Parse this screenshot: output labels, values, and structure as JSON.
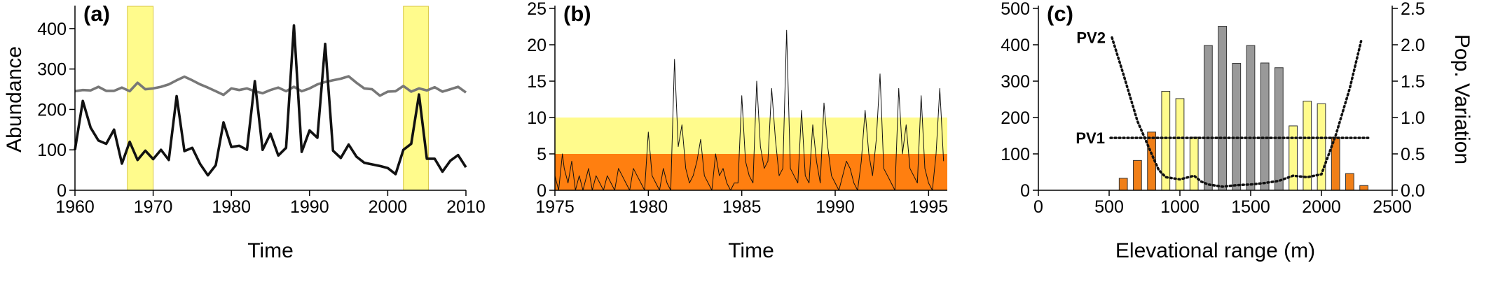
{
  "chart_data": [
    {
      "id": "a",
      "type": "line",
      "panel_label": "(a)",
      "title": "",
      "xlabel": "Time",
      "ylabel": "Abundance",
      "xlim": [
        1960,
        2010
      ],
      "ylim": [
        0,
        450
      ],
      "xticks": [
        1960,
        1970,
        1980,
        1990,
        2000,
        2010
      ],
      "yticks": [
        0,
        100,
        200,
        300,
        400
      ],
      "highlight_spans": [
        [
          1966.7,
          1970.0
        ],
        [
          2002.0,
          2005.2
        ]
      ],
      "grid": false,
      "legend": "none",
      "series": [
        {
          "color": "#777777",
          "x": [
            1960,
            1961,
            1962,
            1963,
            1964,
            1965,
            1966,
            1967,
            1968,
            1969,
            1970,
            1971,
            1972,
            1973,
            1974,
            1975,
            1976,
            1977,
            1978,
            1979,
            1980,
            1981,
            1982,
            1983,
            1984,
            1985,
            1986,
            1987,
            1988,
            1989,
            1990,
            1991,
            1992,
            1993,
            1994,
            1995,
            1996,
            1997,
            1998,
            1999,
            2000,
            2001,
            2002,
            2003,
            2004,
            2005,
            2006,
            2007,
            2008,
            2009,
            2010
          ],
          "y": [
            245,
            248,
            247,
            256,
            246,
            246,
            254,
            245,
            266,
            250,
            252,
            256,
            262,
            272,
            281,
            272,
            262,
            254,
            245,
            236,
            252,
            248,
            252,
            245,
            240,
            248,
            254,
            245,
            256,
            245,
            252,
            262,
            268,
            272,
            276,
            282,
            266,
            252,
            250,
            234,
            244,
            245,
            258,
            244,
            252,
            247,
            255,
            244,
            250,
            256,
            242
          ]
        },
        {
          "color": "#111111",
          "x": [
            1960,
            1961,
            1962,
            1963,
            1964,
            1965,
            1966,
            1967,
            1968,
            1969,
            1970,
            1971,
            1972,
            1973,
            1974,
            1975,
            1976,
            1977,
            1978,
            1979,
            1980,
            1981,
            1982,
            1983,
            1984,
            1985,
            1986,
            1987,
            1988,
            1989,
            1990,
            1991,
            1992,
            1993,
            1994,
            1995,
            1996,
            1997,
            1998,
            1999,
            2000,
            2001,
            2002,
            2003,
            2004,
            2005,
            2006,
            2007,
            2008,
            2009,
            2010
          ],
          "y": [
            100,
            221,
            155,
            123,
            115,
            150,
            66,
            120,
            75,
            98,
            77,
            100,
            75,
            233,
            97,
            105,
            65,
            37,
            62,
            168,
            107,
            110,
            100,
            270,
            100,
            140,
            86,
            105,
            408,
            95,
            148,
            130,
            362,
            98,
            80,
            113,
            83,
            68,
            64,
            60,
            55,
            40,
            100,
            115,
            237,
            78,
            78,
            46,
            73,
            87,
            57
          ]
        }
      ]
    },
    {
      "id": "b",
      "type": "line",
      "panel_label": "(b)",
      "title": "",
      "xlabel": "Time",
      "ylabel": "",
      "xlim": [
        1975,
        1996
      ],
      "ylim": [
        0,
        25
      ],
      "xticks": [
        1975,
        1980,
        1985,
        1990,
        1995
      ],
      "yticks": [
        0,
        5,
        10,
        15,
        20,
        25
      ],
      "bands": [
        {
          "from": 5,
          "to": 10,
          "color": "#fffb8c"
        },
        {
          "from": 0,
          "to": 5,
          "color": "#ff7f10"
        }
      ],
      "grid": false,
      "legend": "none",
      "series": [
        {
          "color": "#111111",
          "x": [
            1975.0,
            1975.2,
            1975.4,
            1975.5,
            1975.7,
            1975.9,
            1976.1,
            1976.3,
            1976.5,
            1976.6,
            1976.8,
            1977.0,
            1977.2,
            1977.4,
            1977.6,
            1977.8,
            1978.0,
            1978.2,
            1978.4,
            1978.6,
            1978.8,
            1979.0,
            1979.2,
            1979.4,
            1979.6,
            1979.8,
            1980.0,
            1980.2,
            1980.4,
            1980.6,
            1980.8,
            1981.0,
            1981.2,
            1981.4,
            1981.6,
            1981.8,
            1982.0,
            1982.2,
            1982.4,
            1982.6,
            1982.8,
            1983.0,
            1983.2,
            1983.4,
            1983.6,
            1983.8,
            1984.0,
            1984.2,
            1984.4,
            1984.6,
            1984.8,
            1985.0,
            1985.2,
            1985.4,
            1985.6,
            1985.8,
            1986.0,
            1986.2,
            1986.4,
            1986.6,
            1986.8,
            1987.0,
            1987.2,
            1987.4,
            1987.6,
            1987.8,
            1988.0,
            1988.2,
            1988.4,
            1988.6,
            1988.8,
            1989.0,
            1989.2,
            1989.4,
            1989.6,
            1989.8,
            1990.0,
            1990.2,
            1990.4,
            1990.6,
            1990.8,
            1991.0,
            1991.2,
            1991.4,
            1991.6,
            1991.8,
            1992.0,
            1992.2,
            1992.4,
            1992.6,
            1992.8,
            1993.0,
            1993.2,
            1993.4,
            1993.6,
            1993.8,
            1994.0,
            1994.2,
            1994.4,
            1994.6,
            1994.8,
            1995.0,
            1995.2,
            1995.4,
            1995.6,
            1995.8
          ],
          "y": [
            2,
            0,
            5,
            3,
            1,
            4,
            0,
            2,
            0,
            1,
            3,
            0,
            2,
            1,
            0,
            2,
            1,
            0,
            3,
            2,
            1,
            0,
            3,
            2,
            1,
            0,
            8,
            2,
            1,
            0,
            3,
            1,
            0,
            18,
            6,
            9,
            3,
            1,
            2,
            4,
            7,
            2,
            1,
            0,
            5,
            2,
            3,
            1,
            0,
            1,
            1,
            13,
            4,
            2,
            1,
            15,
            6,
            3,
            4,
            14,
            7,
            2,
            3,
            22,
            3,
            2,
            1,
            11,
            2,
            1,
            9,
            4,
            1,
            12,
            6,
            2,
            1,
            0,
            2,
            4,
            3,
            1,
            0,
            4,
            11,
            5,
            2,
            7,
            16,
            3,
            2,
            1,
            0,
            14,
            5,
            9,
            3,
            2,
            1,
            13,
            3,
            1,
            0,
            5,
            14,
            4
          ]
        }
      ]
    },
    {
      "id": "c",
      "type": "bar",
      "panel_label": "(c)",
      "title": "",
      "xlabel": "Elevational range (m)",
      "ylabel": "",
      "y2label": "Pop. Variation",
      "xlim": [
        0,
        2500
      ],
      "ylim": [
        0,
        500
      ],
      "y2lim": [
        0,
        2.5
      ],
      "xticks": [
        0,
        500,
        1000,
        1500,
        2000,
        2500
      ],
      "yticks": [
        0,
        100,
        200,
        300,
        400,
        500
      ],
      "y2ticks": [
        "0.0",
        "0.5",
        "1.0",
        "1.5",
        "2.0",
        "2.5"
      ],
      "grid": false,
      "legend": "none",
      "bars": {
        "x": [
          600,
          700,
          800,
          900,
          1000,
          1100,
          1200,
          1300,
          1400,
          1500,
          1600,
          1700,
          1800,
          1900,
          2000,
          2100,
          2200,
          2300
        ],
        "values": [
          33,
          82,
          160,
          272,
          252,
          146,
          398,
          451,
          349,
          398,
          350,
          337,
          177,
          245,
          238,
          146,
          46,
          13
        ],
        "colors": [
          "#f07f18",
          "#f07f18",
          "#f07f18",
          "#fffb8c",
          "#fffb8c",
          "#fffb8c",
          "#999999",
          "#999999",
          "#999999",
          "#999999",
          "#999999",
          "#999999",
          "#fffb8c",
          "#fffb8c",
          "#fffb8c",
          "#f07f18",
          "#f07f18",
          "#f07f18"
        ]
      },
      "lines": [
        {
          "name": "PV1",
          "axis": "right",
          "style": "dotted",
          "x": [
            510,
            2330
          ],
          "y": [
            0.72,
            0.72
          ]
        },
        {
          "name": "PV2",
          "axis": "right",
          "style": "dotted",
          "x": [
            520,
            600,
            700,
            800,
            850,
            900,
            1000,
            1100,
            1150,
            1200,
            1300,
            1400,
            1500,
            1600,
            1700,
            1800,
            1900,
            2000,
            2100,
            2200,
            2280
          ],
          "y": [
            2.1,
            1.6,
            0.95,
            0.5,
            0.28,
            0.18,
            0.15,
            0.2,
            0.12,
            0.08,
            0.05,
            0.07,
            0.08,
            0.1,
            0.13,
            0.2,
            0.18,
            0.22,
            0.75,
            1.4,
            2.05
          ]
        }
      ]
    }
  ]
}
